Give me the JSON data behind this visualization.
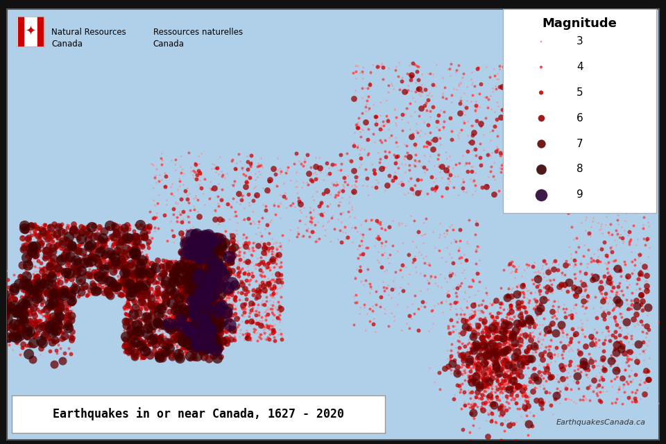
{
  "title": "Earthquakes in or near Canada, 1627 - 2020",
  "subtitle_en": "Natural Resources\nCanada",
  "subtitle_fr": "Ressources naturelles\nCanada",
  "website": "EarthquakesCanada.ca",
  "legend_title": "Magnitude",
  "magnitudes": [
    3,
    4,
    5,
    6,
    7,
    8,
    9
  ],
  "mag_sizes": [
    3,
    8,
    18,
    40,
    75,
    120,
    180
  ],
  "mag_colors": [
    "#ff8888",
    "#ff3333",
    "#cc0000",
    "#990000",
    "#660000",
    "#3d0000",
    "#2a0035"
  ],
  "ocean_color": "#b0cfe8",
  "land_color": "#c8e8a0",
  "land_color2": "#ddf0c0",
  "mountain_color": "#a0b870",
  "desert_color": "#e8d8a8",
  "border_color": "#444444",
  "map_border": "#555555",
  "legend_bg": "#ffffff",
  "title_box_bg": "#ffffff",
  "figure_bg": "#111111",
  "figsize": [
    9.6,
    6.4
  ],
  "dpi": 100,
  "xlim": [
    -168,
    -40
  ],
  "ylim": [
    38,
    86
  ],
  "quake_alpha": 0.75
}
